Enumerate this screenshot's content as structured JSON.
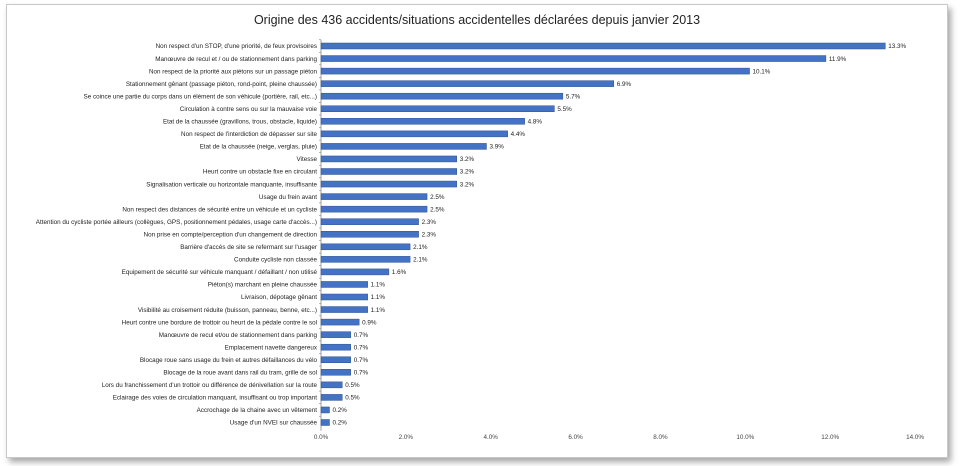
{
  "chart_data": {
    "type": "bar",
    "orientation": "horizontal",
    "title": "Origine des 436 accidents/situations accidentelles déclarées depuis janvier 2013",
    "xlabel": "",
    "ylabel": "",
    "xlim": [
      0,
      14
    ],
    "ticks": [
      "0.0%",
      "2.0%",
      "4.0%",
      "6.0%",
      "8.0%",
      "10.0%",
      "12.0%",
      "14.0%"
    ],
    "grid": false,
    "legend": "none",
    "bar_color": "#4472c4",
    "categories": [
      "Non respect d'un STOP, d'une priorité, de feux provisoires",
      "Manœuvre de recul et / ou de stationnement dans parking",
      "Non respect de la priorité aux piétons sur un passage piéton",
      "Stationnement gênant (passage piéton, rond-point, pleine chaussée)",
      "Se coince une partie du corps dans un élément de son véhicule (portière, rail, etc...)",
      "Circulation à contre sens ou sur la mauvaise voie",
      "Etat de la chaussée (gravillons, trous, obstacle, liquide)",
      "Non respect de l'interdiction de dépasser sur site",
      "Etat de la chaussée (neige, verglas, pluie)",
      "Vitesse",
      "Heurt contre un obstacle fixe en circulant",
      "Signalisation verticale ou horizontale manquante, insuffisante",
      "Usage du frein avant",
      "Non respect des distances de sécurité entre un véhicule et un cycliste",
      "Attention du cycliste portée ailleurs (collègues, GPS, positionnement pédales, usage carte d'accès...)",
      "Non prise en compte/perception d'un changement de direction",
      "Barrière d'accès de site se refermant sur l'usager",
      "Conduite cycliste non classée",
      "Equipement de sécurité sur véhicule manquant / défaillant / non utilisé",
      "Piéton(s) marchant en pleine chaussée",
      "Livraison, dépotage gênant",
      "Visibilité au croisement réduite (buisson, panneau, benne, etc...)",
      "Heurt contre une bordure de trottoir ou heurt de la pédale contre le sol",
      "Manœuvre de recul et/ou de stationnement dans parking",
      "Emplacement navette dangereux",
      "Blocage roue sans usage du frein et autres défaillances du vélo",
      "Blocage de la roue avant dans rail du tram, grille de sol",
      "Lors du franchissement d'un trottoir ou différence de dénivellation sur la route",
      "Eclairage des voies de circulation manquant, insuffisant ou trop important",
      "Accrochage de la chaine avec un vêtement",
      "Usage d'un NVEI sur chaussée"
    ],
    "values": [
      13.3,
      11.9,
      10.1,
      6.9,
      5.7,
      5.5,
      4.8,
      4.4,
      3.9,
      3.2,
      3.2,
      3.2,
      2.5,
      2.5,
      2.3,
      2.3,
      2.1,
      2.1,
      1.6,
      1.1,
      1.1,
      1.1,
      0.9,
      0.7,
      0.7,
      0.7,
      0.7,
      0.5,
      0.5,
      0.2,
      0.2
    ],
    "value_labels": [
      "13.3%",
      "11.9%",
      "10.1%",
      "6.9%",
      "5.7%",
      "5.5%",
      "4.8%",
      "4.4%",
      "3.9%",
      "3.2%",
      "3.2%",
      "3.2%",
      "2.5%",
      "2.5%",
      "2.3%",
      "2.3%",
      "2.1%",
      "2.1%",
      "1.6%",
      "1.1%",
      "1.1%",
      "1.1%",
      "0.9%",
      "0.7%",
      "0.7%",
      "0.7%",
      "0.7%",
      "0.5%",
      "0.5%",
      "0.2%",
      "0.2%"
    ]
  }
}
